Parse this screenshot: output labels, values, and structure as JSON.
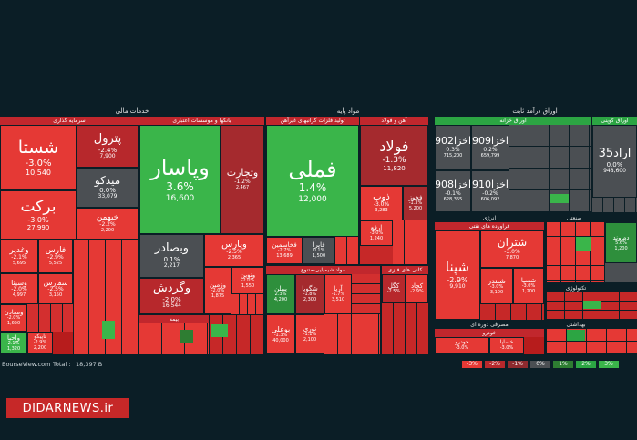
{
  "sectors": {
    "financial_services": "خدمات مالی",
    "basic_materials": "مواد پایه",
    "fixed_income": "اوراق درآمد ثابت"
  },
  "subsectors": {
    "investment": "سرمایه گذاری",
    "banks": "بانکها و موسسات اعتباری",
    "basic_metals": "تولید فلزات گرانبهای غیرآهن",
    "iron_steel": "آهن و فولاد",
    "treasury": "اوراق خزانه",
    "coupon_bonds": "اوراق کوپنی",
    "energy": "انرژی",
    "oil_refinery": "فراورده های نفتی",
    "industry": "صنعتی",
    "chemicals": "مواد شیمیایی-متنوع",
    "metal_ores": "کانی های فلزی",
    "cyclical_consumer": "مصرفی دوره ای",
    "auto": "خودرو",
    "insurance": "بیمه",
    "tech": "تکنولوژی",
    "health": "بهداشتی"
  },
  "tiles": {
    "shasta": {
      "name": "شستا",
      "pct": "-3.0%",
      "vol": "10,540"
    },
    "petrol": {
      "name": "پترول",
      "pct": "-2.4%",
      "vol": "7,900"
    },
    "midko": {
      "name": "میدکو",
      "pct": "0.0%",
      "vol": "33,079"
    },
    "barkat": {
      "name": "برکت",
      "pct": "-3.0%",
      "vol": "27,990"
    },
    "khebahman": {
      "name": "خبهمن",
      "pct": "-2.2%",
      "vol": "2,200"
    },
    "vghadir": {
      "name": "وغدیر",
      "pct": "-2.1%",
      "vol": "5,695"
    },
    "fars": {
      "name": "فارس",
      "pct": "-2.9%",
      "vol": "5,525"
    },
    "vsina": {
      "name": "وسینا",
      "pct": "-2.0%",
      "vol": "4,997"
    },
    "sefars": {
      "name": "سفارس",
      "pct": "-2.5%",
      "vol": "3,150"
    },
    "vmaaden": {
      "name": "ومعادن",
      "pct": "-2.0%",
      "vol": "1,650"
    },
    "vakhaba": {
      "name": "واحبا",
      "pct": "2.1%",
      "vol": "1,320"
    },
    "tapiko": {
      "name": "تاپیکو",
      "pct": "-2.9%",
      "vol": "2,200"
    },
    "vpasar": {
      "name": "وپاسار",
      "pct": "3.6%",
      "vol": "16,600"
    },
    "vtejarat": {
      "name": "وتجارت",
      "pct": "-1.2%",
      "vol": "2,467"
    },
    "vbsader": {
      "name": "وبصادر",
      "pct": "0.1%",
      "vol": "2,217"
    },
    "vparas": {
      "name": "وپارس",
      "pct": "-2.5%",
      "vol": "2,365"
    },
    "vgardesh": {
      "name": "وگردش",
      "pct": "-2.0%",
      "vol": "16,544"
    },
    "vamin": {
      "name": "وزمین",
      "pct": "-2.0%",
      "vol": "1,875"
    },
    "vnovin": {
      "name": "ونوین",
      "pct": "-2.0%",
      "vol": "1,550"
    },
    "fameli": {
      "name": "فملی",
      "pct": "1.4%",
      "vol": "12,000"
    },
    "fkhasmin": {
      "name": "فخاسمین",
      "pct": "-2.7%",
      "vol": "13,689"
    },
    "faira": {
      "name": "فایرا",
      "pct": "0.1%",
      "vol": "1,500"
    },
    "folad": {
      "name": "فولاد",
      "pct": "-1.3%",
      "vol": "11,820"
    },
    "zob": {
      "name": "ذوب",
      "pct": "-3.0%",
      "vol": "3,283"
    },
    "fkhouz": {
      "name": "فخوز",
      "pct": "-1.3%",
      "vol": "5,200"
    },
    "arfa": {
      "name": "ارفع",
      "pct": "-3.0%",
      "vol": "1,240"
    },
    "akhza902": {
      "name": "اخزا902",
      "pct": "0.3%",
      "vol": "715,200"
    },
    "akhza909": {
      "name": "اخزا909",
      "pct": "0.2%",
      "vol": "659,799"
    },
    "akhza908": {
      "name": "اخزا908",
      "pct": "-0.1%",
      "vol": "628,355"
    },
    "akhza910": {
      "name": "اخزا910",
      "pct": "-0.2%",
      "vol": "606,092"
    },
    "arad35": {
      "name": "اراد35",
      "pct": "0.0%",
      "vol": "948,600"
    },
    "shepna": {
      "name": "شپنا",
      "pct": "-2.9%",
      "vol": "9,910"
    },
    "shetran": {
      "name": "شتران",
      "pct": "-3.0%",
      "vol": "7,870"
    },
    "shbandar": {
      "name": "شبندر",
      "pct": "-3.0%",
      "vol": "3,100"
    },
    "shesina": {
      "name": "شسپا",
      "pct": "-3.0%",
      "vol": "1,200"
    },
    "pbehdar": {
      "name": "پبیلن",
      "pct": "2.3%",
      "vol": "4,200"
    },
    "shgoya": {
      "name": "شگویا",
      "pct": "-1.8%",
      "vol": "2,300"
    },
    "arya": {
      "name": "آریا",
      "pct": "-1.7%",
      "vol": "3,510"
    },
    "bouali": {
      "name": "بوعلی",
      "pct": "-1.3%",
      "vol": "40,000"
    },
    "nouri": {
      "name": "نوری",
      "pct": "-1.1%",
      "vol": "2,100"
    },
    "kakl": {
      "name": "کگل",
      "pct": "-2.5%",
      "vol": "1,500"
    },
    "kchad": {
      "name": "کچاد",
      "pct": "-2.9%",
      "vol": "1,460"
    },
    "khodro": {
      "name": "خودرو",
      "pct": "-3.0%",
      "vol": "4,120"
    },
    "khsapa": {
      "name": "خساپا",
      "pct": "-3.0%",
      "vol": "3,500"
    },
    "dmavand": {
      "name": "دماوند",
      "pct": "5.6%",
      "vol": "1,200"
    }
  },
  "strip": [
    "-3%",
    "-2%",
    "-1%",
    "0%",
    "1%",
    "2%",
    "3%"
  ],
  "footer": {
    "site": "BourseView.com",
    "total_label": "Total :",
    "total_value": "18,397 B"
  },
  "watermark": "DIDARNEWS.ir",
  "colors": {
    "background": "#0b1e26",
    "negative": "#e53935",
    "positive": "#3ab54a",
    "neutral": "#4b4f53"
  }
}
